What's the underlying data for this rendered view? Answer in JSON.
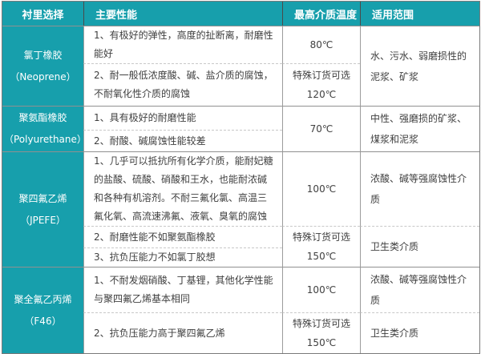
{
  "colors": {
    "accent_teal": "#179FAC",
    "header_text": "#FFFFFF",
    "body_text": "#404040",
    "solid_border": "#909090",
    "dashed_border": "#C8C8C8"
  },
  "table": {
    "headers": [
      "衬里选择",
      "主要性能",
      "最高介质温度",
      "适用范围"
    ],
    "groups": [
      {
        "material": "氯丁橡胶",
        "material_en": "（Neoprene）",
        "application": "水、污水、弱磨损性的泥浆、矿浆",
        "rows": [
          {
            "property": "1、有极好的弹性，高度的扯断离，耐磨性能好",
            "temperature": "80℃"
          },
          {
            "property": "2、耐一般低浓度酸、碱、盐介质的腐蚀，不耐氧化性介质的腐蚀",
            "temperature": "特殊订货可选\n120℃"
          }
        ]
      },
      {
        "material": "聚氨酯橡胶",
        "material_en": "（Polyurethane）",
        "application": "中性、强磨损的矿浆、煤浆和泥浆",
        "rows": [
          {
            "property": "1、具有极好的耐磨性能",
            "temperature": "70℃"
          },
          {
            "property": "2、耐酸、碱腐蚀性能较差"
          }
        ]
      },
      {
        "material": "聚四氟乙烯",
        "material_en": "（JPEFE）",
        "rows": [
          {
            "property": "1、几乎可以抵抗所有化学介质，能耐妃糖的盐酸、硫酸、硝酸和王水，也能耐浓碱和各种有机溶剂。不耐三氟化氯、高温三氟化氧、高流速沸氟、液氧、臭氧的腐蚀",
            "temperature": "100℃",
            "application": "浓酸、碱等强腐蚀性介质"
          },
          {
            "property": "2、耐磨性能不如聚氨酯橡胶",
            "temperature": "特殊订货可选\n150℃",
            "application": "卫生类介质"
          },
          {
            "property": "3、抗负压能力不如氯丁胶想"
          }
        ]
      },
      {
        "material": "聚全氟乙丙烯",
        "material_en": "（F46）",
        "rows": [
          {
            "property": "1、不耐发烟硝酸、丁基锂，其他化学性能与聚四氟乙烯基本相同",
            "temperature": "100℃",
            "application": "浓酸、碱等强腐蚀性介质"
          },
          {
            "property": "2、抗负压能力高于聚四氟乙烯",
            "temperature": "特殊订货可选\n150℃",
            "application": "卫生类介质"
          }
        ]
      }
    ]
  }
}
